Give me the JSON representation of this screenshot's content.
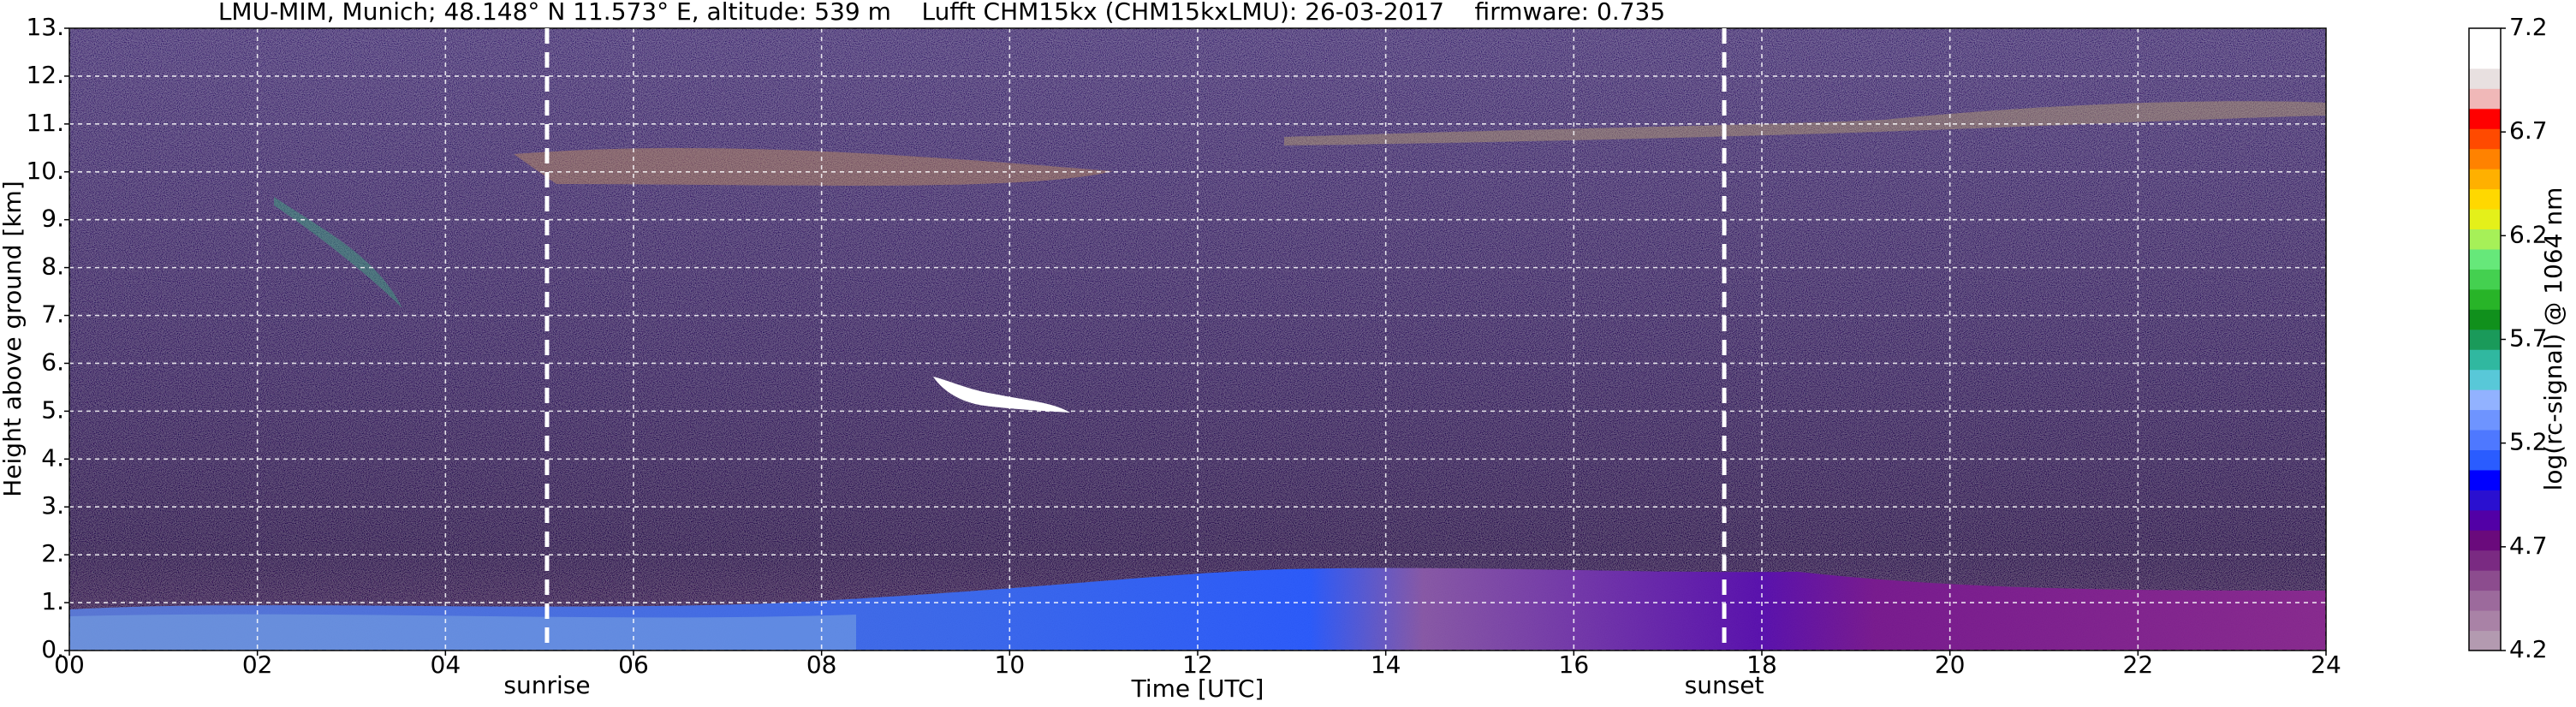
{
  "chart_data": {
    "type": "heatmap",
    "title": "LMU-MIM, Munich; 48.148° N 11.573° E, altitude: 539 m    Lufft CHM15kx (CHM15kxLMU): 26-03-2017    firmware: 0.735",
    "x_label": "Time [UTC]",
    "y_label": "Height above ground [km]",
    "xlim": [
      0,
      24
    ],
    "xticks": [
      {
        "value": 0,
        "label": "00"
      },
      {
        "value": 2,
        "label": "02"
      },
      {
        "value": 4,
        "label": "04"
      },
      {
        "value": 6,
        "label": "06"
      },
      {
        "value": 8,
        "label": "08"
      },
      10,
      12,
      14,
      16,
      18,
      20,
      22,
      24
    ],
    "ylim": [
      0,
      13
    ],
    "yticks": [
      {
        "value": 0,
        "label": "0."
      },
      {
        "value": 1,
        "label": "1."
      },
      {
        "value": 2,
        "label": "2."
      },
      {
        "value": 3,
        "label": "3."
      },
      {
        "value": 4,
        "label": "4."
      },
      {
        "value": 5,
        "label": "5."
      },
      {
        "value": 6,
        "label": "6."
      },
      {
        "value": 7,
        "label": "7."
      },
      {
        "value": 8,
        "label": "8."
      },
      {
        "value": 9,
        "label": "9."
      },
      {
        "value": 10,
        "label": "10."
      },
      {
        "value": 11,
        "label": "11."
      },
      {
        "value": 12,
        "label": "12."
      },
      {
        "value": 13,
        "label": "13."
      }
    ],
    "grid": true,
    "annotations": [
      {
        "text": "sunrise",
        "x": 5.08
      },
      {
        "text": "sunset",
        "x": 17.6
      }
    ],
    "colorbar": {
      "label": "log(rc-signal) @ 1064 nm",
      "clim": [
        4.2,
        7.2
      ],
      "ticks": [
        4.2,
        4.7,
        5.2,
        5.7,
        6.2,
        6.7,
        7.2
      ],
      "colors": [
        "#b39ab0",
        "#a982a6",
        "#9c6a9c",
        "#8c4c8e",
        "#7a2a82",
        "#6a0a7c",
        "#5200a6",
        "#2a10d0",
        "#0000ff",
        "#2a5cff",
        "#4e78ff",
        "#6e94ff",
        "#92b2ff",
        "#58c8d8",
        "#30b8a0",
        "#1a9a5a",
        "#10901c",
        "#28b428",
        "#44d050",
        "#66e87a",
        "#a6f058",
        "#e4f01a",
        "#ffd800",
        "#ffb000",
        "#ff8200",
        "#ff4a00",
        "#ff0000",
        "#f0b8b8",
        "#e8e0e0",
        "#ffffff",
        "#ffffff"
      ]
    }
  }
}
